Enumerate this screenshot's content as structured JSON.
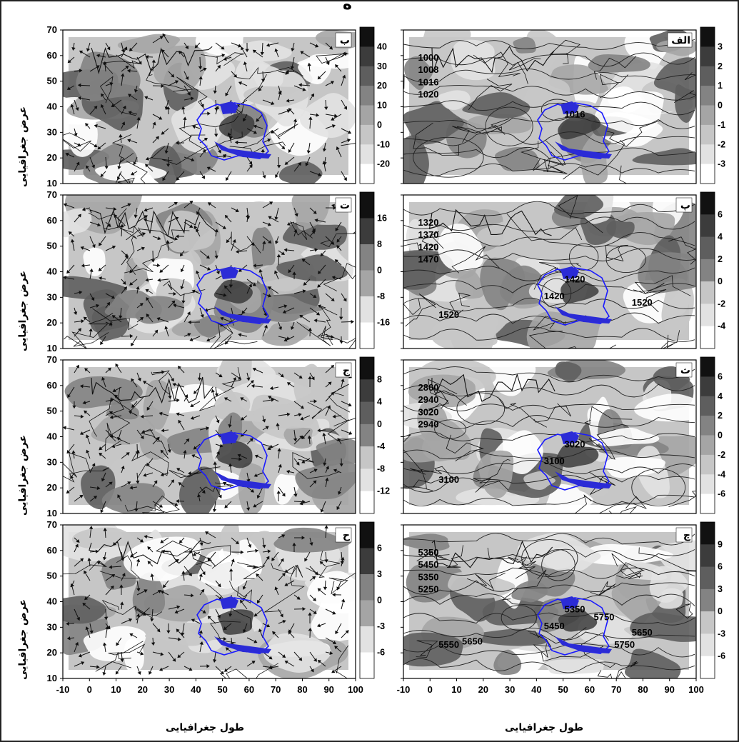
{
  "figure": {
    "x_axis_title": "طول جغرافیایی",
    "y_axis_title": "عرض جغرافیایی",
    "x_ticks": [
      "-10",
      "0",
      "10",
      "20",
      "30",
      "40",
      "50",
      "60",
      "70",
      "80",
      "90",
      "100"
    ],
    "y_ticks": [
      "70",
      "60",
      "50",
      "40",
      "30",
      "20",
      "10"
    ],
    "top_cut_text": "ه"
  },
  "panels": [
    {
      "id": "alef",
      "label": "الف",
      "side": "right",
      "row": 0,
      "colorbar": [
        "3",
        "2",
        "1",
        "0",
        "-1",
        "-2",
        "-3"
      ],
      "contour_labels": [
        "1000",
        "1008",
        "1016",
        "1020",
        "1016"
      ]
    },
    {
      "id": "be",
      "label": "ب",
      "side": "left",
      "row": 0,
      "colorbar": [
        "40",
        "30",
        "20",
        "10",
        "0",
        "-10",
        "-20"
      ],
      "contour_labels": []
    },
    {
      "id": "pe",
      "label": "پ",
      "side": "right",
      "row": 1,
      "colorbar": [
        "6",
        "4",
        "2",
        "0",
        "-2",
        "-4"
      ],
      "contour_labels": [
        "1320",
        "1370",
        "1420",
        "1470",
        "1420",
        "1420",
        "1520",
        "1520"
      ]
    },
    {
      "id": "te",
      "label": "ت",
      "side": "left",
      "row": 1,
      "colorbar": [
        "16",
        "8",
        "0",
        "-8",
        "-16"
      ],
      "contour_labels": []
    },
    {
      "id": "se",
      "label": "ث",
      "side": "right",
      "row": 2,
      "colorbar": [
        "6",
        "4",
        "2",
        "0",
        "-2",
        "-4",
        "-6"
      ],
      "contour_labels": [
        "2860",
        "2940",
        "3020",
        "2940",
        "3020",
        "3100",
        "3100"
      ]
    },
    {
      "id": "jim",
      "label": "ج",
      "side": "left",
      "row": 2,
      "colorbar": [
        "8",
        "4",
        "0",
        "-4",
        "-8",
        "-12"
      ],
      "contour_labels": []
    },
    {
      "id": "che",
      "label": "چ",
      "side": "right",
      "row": 3,
      "colorbar": [
        "9",
        "6",
        "3",
        "0",
        "-3",
        "-6"
      ],
      "contour_labels": [
        "5350",
        "5450",
        "5350",
        "5250",
        "5350",
        "5450",
        "5550",
        "5650",
        "5650",
        "5750",
        "5750"
      ]
    },
    {
      "id": "he",
      "label": "ح",
      "side": "left",
      "row": 3,
      "colorbar": [
        "6",
        "3",
        "0",
        "-3",
        "-6"
      ],
      "contour_labels": []
    }
  ],
  "colors": {
    "shade_ramp": [
      "#ffffff",
      "#e2e2e2",
      "#c6c6c6",
      "#a5a5a5",
      "#838383",
      "#5e5e5e",
      "#3c3c3c",
      "#111111"
    ],
    "iran_fill": "#2b2bd6",
    "iran_outline": "#1a1aff",
    "frame": "#222222"
  }
}
